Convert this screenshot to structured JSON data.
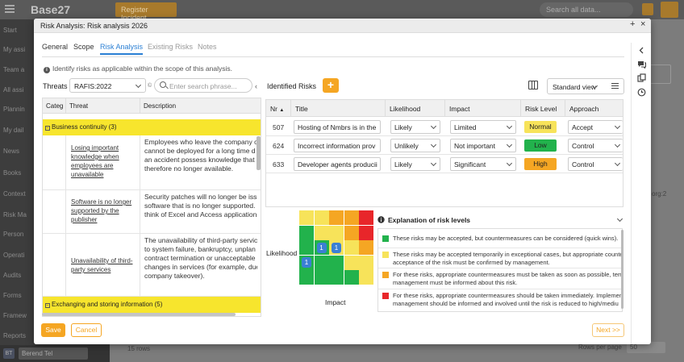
{
  "app": {
    "name": "Base27",
    "register_button": "Register Incident",
    "search_placeholder": "Search all data..."
  },
  "sidebar": {
    "items": [
      "Start",
      "My assi",
      "Team a",
      "All assi",
      "Plannin",
      "My dail",
      "News",
      "Books",
      "Context",
      "Risk Ma",
      "Person",
      "Operati",
      "Audits",
      "Forms",
      "Framew",
      "Reports"
    ],
    "user": "Berend Tel",
    "avatar": "BT"
  },
  "background": {
    "rows_label": "15 rows",
    "per_page_label": "Rows per page",
    "per_page_value": "50",
    "right_text": "org:2"
  },
  "modal": {
    "title": "Risk Analysis: Risk analysis 2026",
    "tabs": [
      "General",
      "Scope",
      "Risk Analysis",
      "Existing Risks",
      "Notes"
    ],
    "active_tab": "Risk Analysis",
    "info": "Identify risks as applicable within the scope of this analysis.",
    "threats": {
      "label": "Threats",
      "catalog": "RAFIS:2022",
      "search_placeholder": "Enter search phrase...",
      "columns": [
        "Categ",
        "Threat",
        "Description"
      ],
      "groups": [
        {
          "label": "Business continuity (3)",
          "rows": [
            {
              "threat": [
                "Losing important",
                "knowledge when",
                "employees are",
                "unavailable"
              ],
              "description": [
                "Employees who leave the company o",
                "cannot be deployed for a long time d",
                "an accident possess knowledge that i",
                "therefore no longer available."
              ]
            },
            {
              "threat": [
                "Software is no longer",
                "supported by the",
                "publisher"
              ],
              "description": [
                "Security patches will no longer be issu",
                "software that is no longer supported.",
                "think of Excel and Access applications"
              ]
            },
            {
              "threat": [
                "Unavailability of third-",
                "party services"
              ],
              "description": [
                "The unavailability of third-party servic",
                "to system failure, bankruptcy, unplan",
                "contract termination or unacceptable",
                "changes in services (for example, due",
                "company takeover)."
              ]
            }
          ]
        },
        {
          "label": "Exchanging and storing information (5)",
          "rows": []
        }
      ]
    },
    "risks": {
      "label": "Identified Risks",
      "add_label": "+",
      "view": "Standard view",
      "columns": [
        "Nr",
        "Title",
        "Likelihood",
        "Impact",
        "Risk Level",
        "Approach"
      ],
      "sort_indicator": "▲",
      "rows": [
        {
          "nr": "507",
          "title": "Hosting of Nmbrs is in the",
          "likelihood": "Likely",
          "impact": "Limited",
          "level": "Normal",
          "level_color": "#f7e35a",
          "approach": "Accept"
        },
        {
          "nr": "624",
          "title": "Incorrect information prov",
          "likelihood": "Unlikely",
          "impact": "Not important",
          "level": "Low",
          "level_color": "#22b24c",
          "approach": "Control"
        },
        {
          "nr": "633",
          "title": "Developer agents producii",
          "likelihood": "Likely",
          "impact": "Significant",
          "level": "High",
          "level_color": "#f5a623",
          "approach": "Control"
        }
      ]
    },
    "matrix": {
      "likelihood_label": "Likelihood",
      "impact_label": "Impact",
      "colors": [
        "#22b24c",
        "#f7e35a",
        "#f5a623",
        "#e8262a"
      ],
      "grid": [
        [
          1,
          1,
          2,
          2,
          3
        ],
        [
          0,
          1,
          1,
          2,
          3
        ],
        [
          0,
          0,
          1,
          1,
          2
        ],
        [
          0,
          0,
          0,
          1,
          1
        ],
        [
          0,
          0,
          0,
          0,
          1
        ]
      ],
      "markers": [
        {
          "row": 2,
          "col": 1,
          "count": "1"
        },
        {
          "row": 2,
          "col": 2,
          "count": "1"
        },
        {
          "row": 3,
          "col": 0,
          "count": "1"
        }
      ]
    },
    "explanation": {
      "title": "Explanation of risk levels",
      "items": [
        {
          "color": "#22b24c",
          "lines": [
            "These risks may be accepted, but countermeasures can be considered (quick wins)."
          ]
        },
        {
          "color": "#f7e35a",
          "lines": [
            "These risks may be accepted temporarily in exceptional cases, but appropriate counte",
            "acceptance of the risk must be confirmed by management."
          ]
        },
        {
          "color": "#f5a623",
          "lines": [
            "For these risks, appropriate countermeasures must be taken as soon as possible, temp",
            "management must be informed about this risk."
          ]
        },
        {
          "color": "#e8262a",
          "lines": [
            "For these risks, appropriate countermeasures should be taken immediately. Implemen",
            "management should be informed and involved until the risk is reduced to high/mediu"
          ]
        }
      ]
    },
    "footer": {
      "save": "Save",
      "cancel": "Cancel",
      "next": "Next >>"
    }
  }
}
